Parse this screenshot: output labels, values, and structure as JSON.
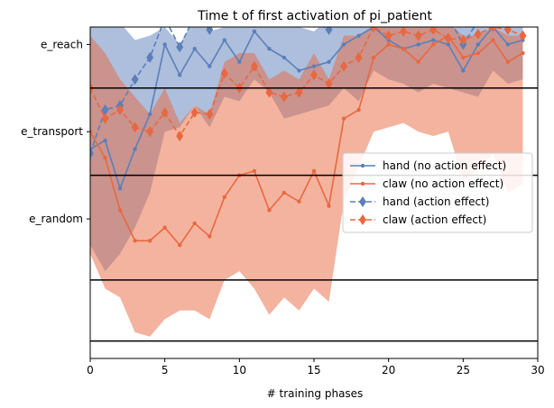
{
  "chart_data": {
    "type": "line",
    "title": "Time t of first activation of pi_patient",
    "xlabel": "# training phases",
    "ylabel": "",
    "xlim": [
      0,
      30
    ],
    "ylim": [
      -0.6,
      3.2
    ],
    "xticks": [
      0,
      5,
      10,
      15,
      20,
      25,
      30
    ],
    "yticks": [
      {
        "value": 1,
        "label": "e_random"
      },
      {
        "value": 2,
        "label": "e_transport"
      },
      {
        "value": 3,
        "label": "e_reach"
      }
    ],
    "hlines": [
      -0.4,
      0.3,
      1.5,
      2.5
    ],
    "grid": false,
    "legend_position": "center-right",
    "series": [
      {
        "name": "hand (no action effect)",
        "color": "#5b7fba",
        "marker": "point",
        "linestyle": "solid",
        "x": [
          0,
          1,
          2,
          3,
          4,
          5,
          6,
          7,
          8,
          9,
          10,
          11,
          12,
          13,
          14,
          15,
          16,
          17,
          18,
          19,
          20,
          21,
          22,
          23,
          24,
          25,
          26,
          27,
          28,
          29
        ],
        "y": [
          1.8,
          1.9,
          1.35,
          1.8,
          2.2,
          3.0,
          2.65,
          2.95,
          2.75,
          3.05,
          2.8,
          3.15,
          2.95,
          2.85,
          2.7,
          2.75,
          2.8,
          3.0,
          3.1,
          3.2,
          3.05,
          2.95,
          3.0,
          3.05,
          3.0,
          2.7,
          3.0,
          3.2,
          3.0,
          3.05
        ],
        "band_upper": [
          3.25,
          3.2,
          3.25,
          3.05,
          3.1,
          3.2,
          3.0,
          3.3,
          3.15,
          3.2,
          3.3,
          3.25,
          3.2,
          3.3,
          3.2,
          3.15,
          3.3,
          3.2,
          3.3,
          3.35,
          3.3,
          3.25,
          3.3,
          3.3,
          3.3,
          3.2,
          3.2,
          3.3,
          3.3,
          3.25
        ],
        "band_lower": [
          0.7,
          0.4,
          0.6,
          0.9,
          1.3,
          2.0,
          2.05,
          2.3,
          2.05,
          2.4,
          2.35,
          2.6,
          2.45,
          2.15,
          2.2,
          2.25,
          2.3,
          2.5,
          2.35,
          2.7,
          2.6,
          2.55,
          2.45,
          2.55,
          2.5,
          2.45,
          2.4,
          2.7,
          2.55,
          2.6
        ]
      },
      {
        "name": "claw (no action effect)",
        "color": "#e8683f",
        "marker": "point",
        "linestyle": "solid",
        "x": [
          0,
          1,
          2,
          3,
          4,
          5,
          6,
          7,
          8,
          9,
          10,
          11,
          12,
          13,
          14,
          15,
          16,
          17,
          18,
          19,
          20,
          21,
          22,
          23,
          24,
          25,
          26,
          27,
          28,
          29
        ],
        "y": [
          2.0,
          1.7,
          1.1,
          0.75,
          0.75,
          0.9,
          0.7,
          0.95,
          0.8,
          1.25,
          1.5,
          1.55,
          1.1,
          1.3,
          1.2,
          1.55,
          1.15,
          2.15,
          2.25,
          2.85,
          3.0,
          2.95,
          2.8,
          3.0,
          3.1,
          2.85,
          2.9,
          3.05,
          2.8,
          2.9
        ],
        "band_upper": [
          3.1,
          2.9,
          2.6,
          2.4,
          2.2,
          2.5,
          2.1,
          2.3,
          2.2,
          2.8,
          2.9,
          2.9,
          2.6,
          2.7,
          2.6,
          2.9,
          2.6,
          3.1,
          3.1,
          3.2,
          3.3,
          3.2,
          3.2,
          3.2,
          3.25,
          3.1,
          3.1,
          3.2,
          3.1,
          3.1
        ],
        "band_lower": [
          0.6,
          0.2,
          0.1,
          -0.3,
          -0.35,
          -0.15,
          -0.05,
          -0.05,
          -0.15,
          0.3,
          0.4,
          0.2,
          -0.1,
          0.1,
          -0.05,
          0.2,
          0.05,
          1.2,
          1.6,
          2.0,
          2.05,
          2.1,
          2.0,
          1.95,
          2.0,
          1.45,
          1.55,
          1.75,
          1.3,
          1.4
        ]
      },
      {
        "name": "hand (action effect)",
        "color": "#5b7fba",
        "marker": "diamond",
        "linestyle": "dashed",
        "x": [
          0,
          1,
          2,
          3,
          4,
          5,
          6,
          7,
          8,
          9,
          10,
          11,
          12,
          13,
          14,
          15,
          16,
          17,
          18,
          19,
          20,
          21,
          22,
          23,
          24,
          25,
          26,
          27,
          28,
          29
        ],
        "y": [
          1.75,
          2.25,
          2.3,
          2.6,
          2.85,
          3.3,
          2.97,
          3.33,
          3.17,
          3.4,
          3.4,
          3.4,
          3.33,
          3.27,
          3.33,
          3.25,
          3.17,
          3.37,
          3.33,
          3.45,
          3.28,
          3.33,
          3.35,
          3.33,
          3.32,
          3.0,
          3.27,
          3.33,
          3.25,
          3.3
        ]
      },
      {
        "name": "claw (action effect)",
        "color": "#e8683f",
        "marker": "diamond",
        "linestyle": "dashed",
        "x": [
          0,
          1,
          2,
          3,
          4,
          5,
          6,
          7,
          8,
          9,
          10,
          11,
          12,
          13,
          14,
          15,
          16,
          17,
          18,
          19,
          20,
          21,
          22,
          23,
          24,
          25,
          26,
          27,
          28,
          29
        ],
        "y": [
          2.5,
          2.15,
          2.25,
          2.05,
          2.0,
          2.22,
          1.95,
          2.22,
          2.2,
          2.67,
          2.5,
          2.75,
          2.45,
          2.4,
          2.45,
          2.65,
          2.55,
          2.75,
          2.85,
          3.2,
          3.1,
          3.15,
          3.1,
          3.17,
          3.07,
          3.05,
          3.12,
          3.2,
          3.17,
          3.1
        ]
      }
    ],
    "bands": [
      {
        "series": 0,
        "color": "#5b7fba",
        "opacity": 0.5
      },
      {
        "series": 1,
        "color": "#e8683f",
        "opacity": 0.5
      }
    ]
  }
}
